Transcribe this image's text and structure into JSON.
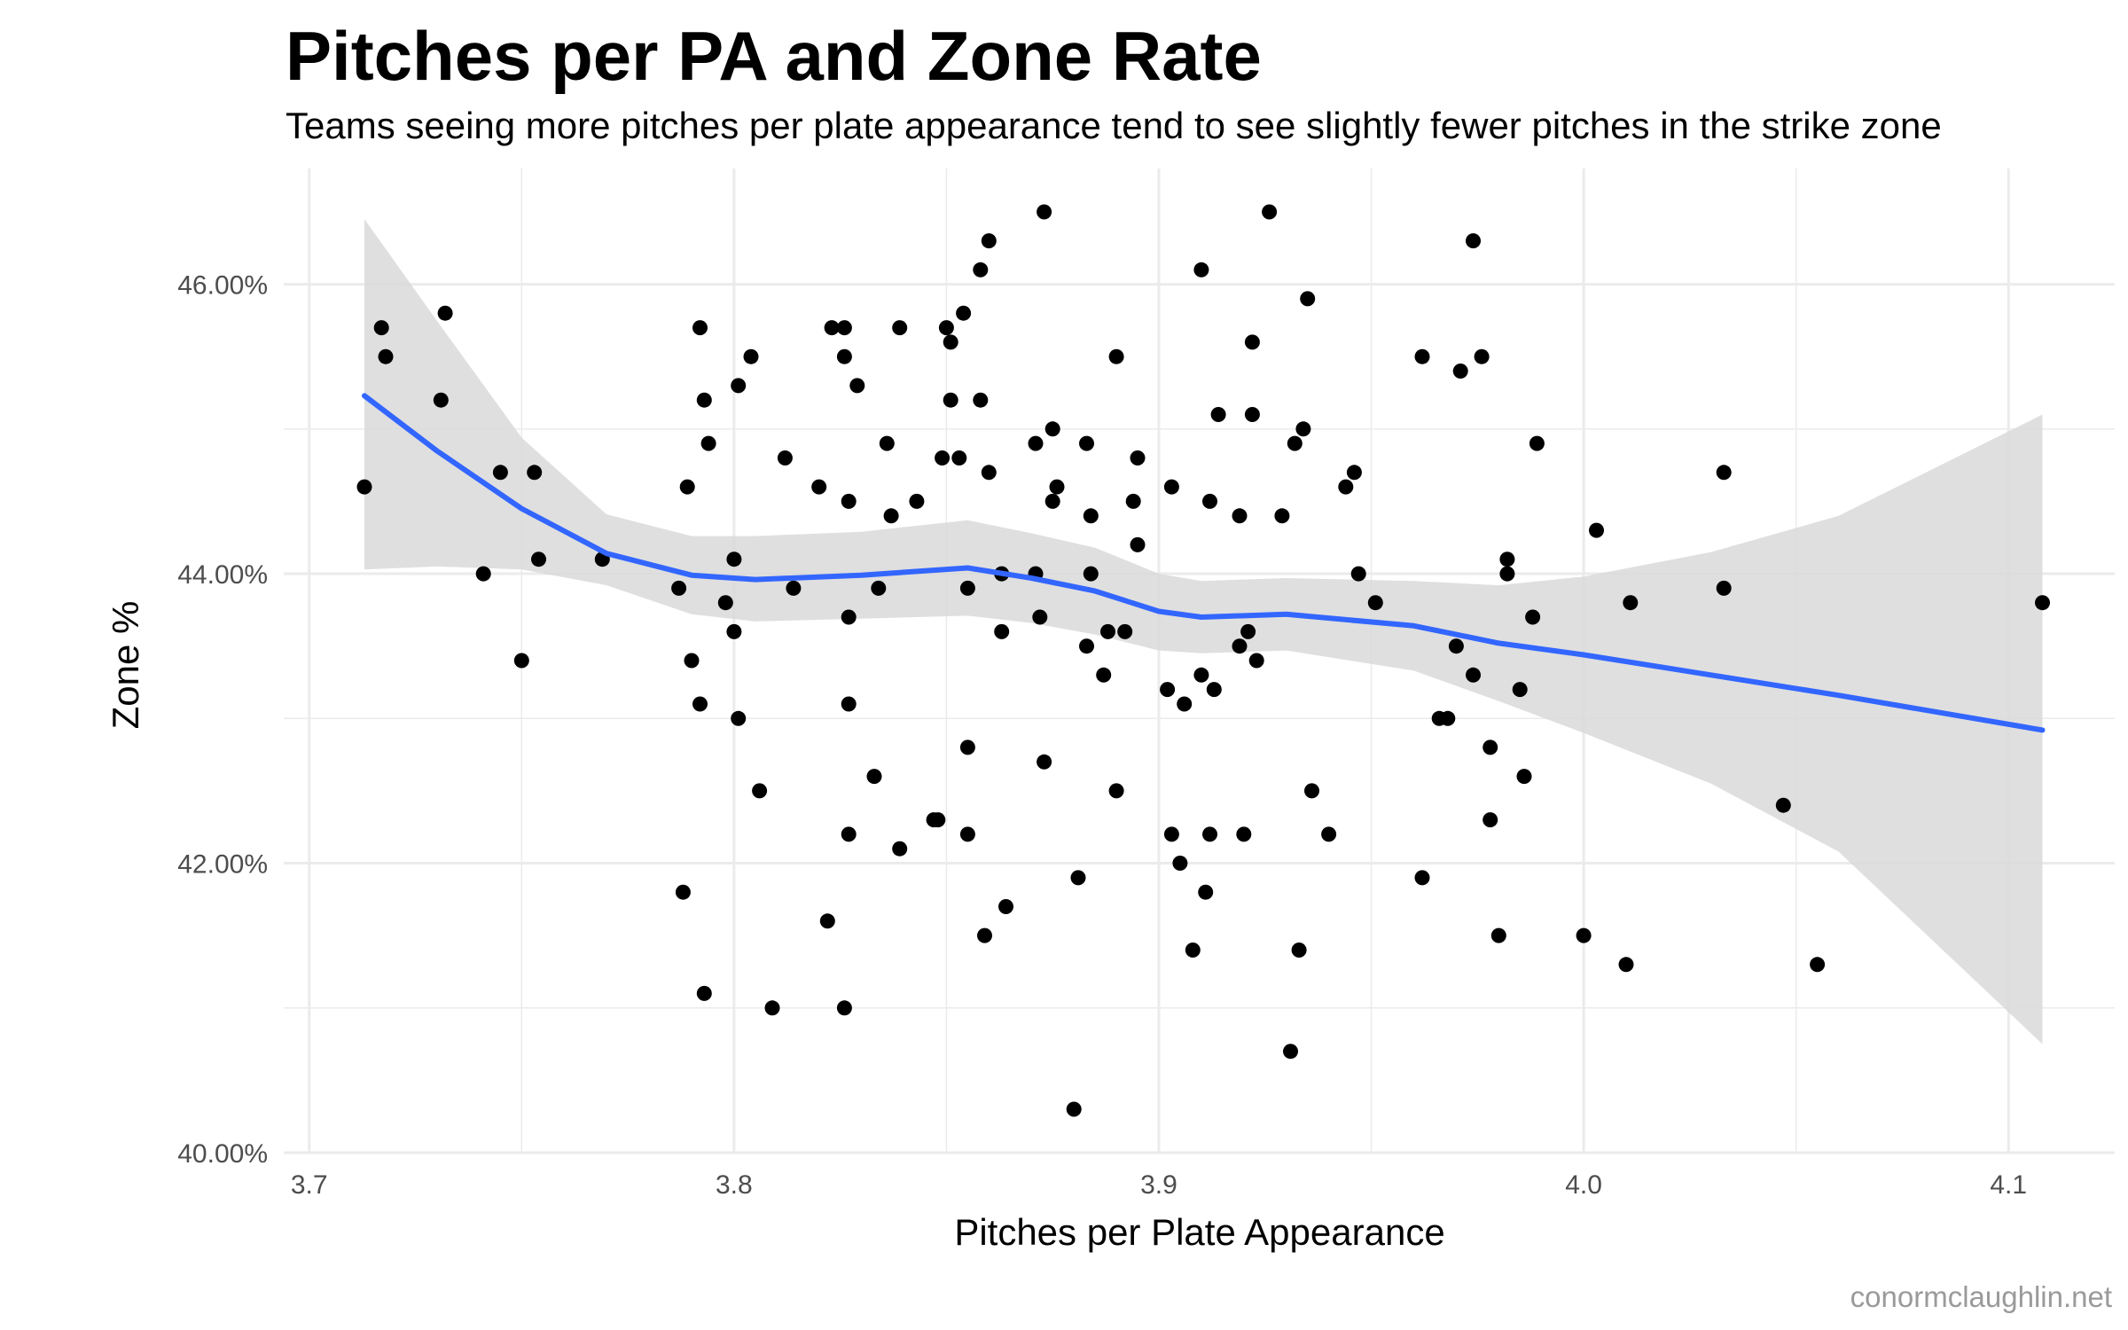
{
  "chart_data": {
    "type": "scatter",
    "title": "Pitches per PA and Zone Rate",
    "subtitle": "Teams seeing more pitches per plate appearance tend to see slightly fewer pitches in the strike zone",
    "xlabel": "Pitches per Plate Appearance",
    "ylabel": "Zone %",
    "caption": "conormclaughlin.net",
    "xlim": [
      3.694,
      4.125
    ],
    "ylim": [
      40.0,
      46.8
    ],
    "x_ticks": [
      3.7,
      3.8,
      3.9,
      4.0,
      4.1
    ],
    "x_tick_labels": [
      "3.7",
      "3.8",
      "3.9",
      "4.0",
      "4.1"
    ],
    "y_ticks": [
      40,
      42,
      44,
      46
    ],
    "y_tick_labels": [
      "40.00%",
      "42.00%",
      "44.00%",
      "46.00%"
    ],
    "grid": true,
    "colors": {
      "points": "#000000",
      "trend": "#3366ff",
      "band": "#d9d9d9",
      "grid": "#ebebeb"
    },
    "points": [
      [
        3.713,
        44.6
      ],
      [
        3.717,
        45.7
      ],
      [
        3.718,
        45.5
      ],
      [
        3.731,
        45.2
      ],
      [
        3.732,
        45.8
      ],
      [
        3.741,
        44.0
      ],
      [
        3.745,
        44.7
      ],
      [
        3.75,
        43.4
      ],
      [
        3.753,
        44.7
      ],
      [
        3.754,
        44.1
      ],
      [
        3.769,
        44.1
      ],
      [
        3.787,
        43.9
      ],
      [
        3.788,
        41.8
      ],
      [
        3.789,
        44.6
      ],
      [
        3.79,
        43.4
      ],
      [
        3.792,
        45.7
      ],
      [
        3.792,
        43.1
      ],
      [
        3.793,
        45.2
      ],
      [
        3.794,
        44.9
      ],
      [
        3.793,
        41.1
      ],
      [
        3.798,
        43.8
      ],
      [
        3.8,
        44.1
      ],
      [
        3.8,
        43.6
      ],
      [
        3.801,
        45.3
      ],
      [
        3.801,
        43.0
      ],
      [
        3.804,
        45.5
      ],
      [
        3.806,
        42.5
      ],
      [
        3.809,
        41.0
      ],
      [
        3.812,
        44.8
      ],
      [
        3.814,
        43.9
      ],
      [
        3.82,
        44.6
      ],
      [
        3.822,
        41.6
      ],
      [
        3.823,
        45.7
      ],
      [
        3.826,
        45.7
      ],
      [
        3.826,
        45.5
      ],
      [
        3.826,
        41.0
      ],
      [
        3.827,
        44.5
      ],
      [
        3.827,
        43.7
      ],
      [
        3.827,
        43.1
      ],
      [
        3.827,
        42.2
      ],
      [
        3.829,
        45.3
      ],
      [
        3.833,
        42.6
      ],
      [
        3.834,
        43.9
      ],
      [
        3.836,
        44.9
      ],
      [
        3.837,
        44.4
      ],
      [
        3.839,
        45.7
      ],
      [
        3.839,
        42.1
      ],
      [
        3.843,
        44.5
      ],
      [
        3.847,
        42.3
      ],
      [
        3.848,
        42.3
      ],
      [
        3.849,
        44.8
      ],
      [
        3.85,
        45.7
      ],
      [
        3.851,
        45.2
      ],
      [
        3.851,
        45.6
      ],
      [
        3.853,
        44.8
      ],
      [
        3.854,
        45.8
      ],
      [
        3.855,
        43.9
      ],
      [
        3.855,
        42.8
      ],
      [
        3.855,
        42.2
      ],
      [
        3.858,
        46.1
      ],
      [
        3.858,
        45.2
      ],
      [
        3.859,
        41.5
      ],
      [
        3.86,
        46.3
      ],
      [
        3.86,
        44.7
      ],
      [
        3.863,
        44.0
      ],
      [
        3.863,
        43.6
      ],
      [
        3.864,
        41.7
      ],
      [
        3.871,
        44.9
      ],
      [
        3.871,
        44.0
      ],
      [
        3.872,
        43.7
      ],
      [
        3.873,
        46.5
      ],
      [
        3.873,
        42.7
      ],
      [
        3.875,
        45.0
      ],
      [
        3.875,
        44.5
      ],
      [
        3.876,
        44.6
      ],
      [
        3.88,
        40.3
      ],
      [
        3.881,
        41.9
      ],
      [
        3.883,
        43.5
      ],
      [
        3.883,
        44.9
      ],
      [
        3.884,
        44.0
      ],
      [
        3.884,
        44.4
      ],
      [
        3.887,
        43.3
      ],
      [
        3.888,
        43.6
      ],
      [
        3.89,
        45.5
      ],
      [
        3.89,
        42.5
      ],
      [
        3.892,
        43.6
      ],
      [
        3.894,
        44.5
      ],
      [
        3.895,
        44.8
      ],
      [
        3.895,
        44.2
      ],
      [
        3.902,
        43.2
      ],
      [
        3.903,
        44.6
      ],
      [
        3.903,
        42.2
      ],
      [
        3.905,
        42.0
      ],
      [
        3.906,
        43.1
      ],
      [
        3.908,
        41.4
      ],
      [
        3.91,
        46.1
      ],
      [
        3.91,
        43.3
      ],
      [
        3.911,
        41.8
      ],
      [
        3.912,
        42.2
      ],
      [
        3.912,
        44.5
      ],
      [
        3.913,
        43.2
      ],
      [
        3.914,
        45.1
      ],
      [
        3.919,
        44.4
      ],
      [
        3.919,
        43.5
      ],
      [
        3.92,
        42.2
      ],
      [
        3.921,
        43.6
      ],
      [
        3.922,
        45.6
      ],
      [
        3.922,
        45.1
      ],
      [
        3.923,
        43.4
      ],
      [
        3.926,
        46.5
      ],
      [
        3.929,
        44.4
      ],
      [
        3.931,
        40.7
      ],
      [
        3.932,
        44.9
      ],
      [
        3.933,
        41.4
      ],
      [
        3.934,
        45.0
      ],
      [
        3.935,
        45.9
      ],
      [
        3.936,
        42.5
      ],
      [
        3.94,
        42.2
      ],
      [
        3.944,
        44.6
      ],
      [
        3.946,
        44.7
      ],
      [
        3.947,
        44.0
      ],
      [
        3.951,
        43.8
      ],
      [
        3.962,
        45.5
      ],
      [
        3.962,
        41.9
      ],
      [
        3.966,
        43.0
      ],
      [
        3.968,
        43.0
      ],
      [
        3.97,
        43.5
      ],
      [
        3.971,
        45.4
      ],
      [
        3.974,
        43.3
      ],
      [
        3.974,
        46.3
      ],
      [
        3.976,
        45.5
      ],
      [
        3.978,
        42.8
      ],
      [
        3.978,
        42.3
      ],
      [
        3.98,
        41.5
      ],
      [
        3.982,
        44.1
      ],
      [
        3.982,
        44.0
      ],
      [
        3.985,
        43.2
      ],
      [
        3.986,
        42.6
      ],
      [
        3.988,
        43.7
      ],
      [
        3.989,
        44.9
      ],
      [
        4.0,
        41.5
      ],
      [
        4.003,
        44.3
      ],
      [
        4.01,
        41.3
      ],
      [
        4.011,
        43.8
      ],
      [
        4.033,
        44.7
      ],
      [
        4.033,
        43.9
      ],
      [
        4.047,
        42.4
      ],
      [
        4.055,
        41.3
      ],
      [
        4.108,
        43.8
      ]
    ],
    "trend_line": {
      "method": "loess",
      "x": [
        3.713,
        3.73,
        3.75,
        3.77,
        3.79,
        3.805,
        3.83,
        3.855,
        3.87,
        3.885,
        3.9,
        3.91,
        3.93,
        3.96,
        3.98,
        4.0,
        4.03,
        4.06,
        4.108
      ],
      "y": [
        45.23,
        44.85,
        44.45,
        44.14,
        43.99,
        43.96,
        43.99,
        44.04,
        43.97,
        43.88,
        43.74,
        43.7,
        43.72,
        43.64,
        43.52,
        43.44,
        43.3,
        43.16,
        42.92
      ],
      "lower": [
        44.03,
        44.05,
        44.03,
        43.92,
        43.72,
        43.67,
        43.69,
        43.71,
        43.66,
        43.58,
        43.47,
        43.45,
        43.47,
        43.33,
        43.12,
        42.9,
        42.55,
        42.08,
        40.75
      ],
      "upper": [
        46.45,
        45.75,
        44.94,
        44.41,
        44.26,
        44.26,
        44.29,
        44.37,
        44.28,
        44.18,
        44.0,
        43.95,
        43.97,
        43.95,
        43.92,
        43.98,
        44.15,
        44.4,
        45.1
      ]
    }
  }
}
